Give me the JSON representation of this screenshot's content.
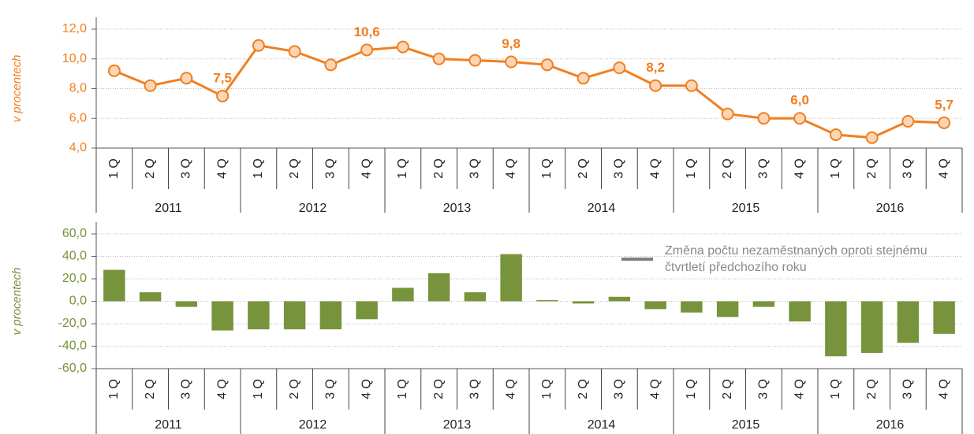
{
  "chart_data": [
    {
      "type": "line",
      "y_label": "v procentech",
      "color": "#f07f1f",
      "categories": [
        "1 Q",
        "2 Q",
        "3 Q",
        "4 Q",
        "1 Q",
        "2 Q",
        "3 Q",
        "4 Q",
        "1 Q",
        "2 Q",
        "3 Q",
        "4 Q",
        "1 Q",
        "2 Q",
        "3 Q",
        "4 Q",
        "1 Q",
        "2 Q",
        "3 Q",
        "4 Q",
        "1 Q",
        "2 Q",
        "3 Q",
        "4 Q"
      ],
      "groups": [
        "2011",
        "2012",
        "2013",
        "2014",
        "2015",
        "2016"
      ],
      "values": [
        9.2,
        8.2,
        8.7,
        7.5,
        10.9,
        10.5,
        9.6,
        10.6,
        10.8,
        10.0,
        9.9,
        9.8,
        9.6,
        8.7,
        9.4,
        8.2,
        8.2,
        6.3,
        6.0,
        6.0,
        4.9,
        4.7,
        5.8,
        5.7
      ],
      "value_labels": [
        null,
        null,
        null,
        "7,5",
        null,
        null,
        null,
        "10,6",
        null,
        null,
        null,
        "9,8",
        null,
        null,
        null,
        "8,2",
        null,
        null,
        null,
        "6,0",
        null,
        null,
        null,
        "5,7"
      ],
      "ylim": [
        4,
        12
      ],
      "yticks": [
        {
          "value": 4,
          "label": "4,0"
        },
        {
          "value": 6,
          "label": "6,0"
        },
        {
          "value": 8,
          "label": "8,0"
        },
        {
          "value": 10,
          "label": "10,0"
        },
        {
          "value": 12,
          "label": "12,0"
        }
      ],
      "grid": true
    },
    {
      "type": "bar",
      "y_label": "v procentech",
      "categories": [
        "1 Q",
        "2 Q",
        "3 Q",
        "4 Q",
        "1 Q",
        "2 Q",
        "3 Q",
        "4 Q",
        "1 Q",
        "2 Q",
        "3 Q",
        "4 Q",
        "1 Q",
        "2 Q",
        "3 Q",
        "4 Q",
        "1 Q",
        "2 Q",
        "3 Q",
        "4 Q",
        "1 Q",
        "2 Q",
        "3 Q",
        "4 Q"
      ],
      "groups": [
        "2011",
        "2012",
        "2013",
        "2014",
        "2015",
        "2016"
      ],
      "series": [
        {
          "name": "Změna počtu nezaměstnaných oproti stejnému čtvrtletí předchozího roku",
          "color": "#77933c",
          "values": [
            28,
            8,
            -5,
            -26,
            -25,
            -25,
            -25,
            -16,
            12,
            25,
            8,
            42,
            1,
            -2,
            4,
            -7,
            -10,
            -14,
            -5,
            -18,
            -49,
            -46,
            -37,
            -29
          ]
        }
      ],
      "ylim": [
        -60,
        60
      ],
      "yticks": [
        {
          "value": -60,
          "label": "-60,0"
        },
        {
          "value": -40,
          "label": "-40,0"
        },
        {
          "value": -20,
          "label": "-20,0"
        },
        {
          "value": 0,
          "label": "0,0"
        },
        {
          "value": 20,
          "label": "20,0"
        },
        {
          "value": 40,
          "label": "40,0"
        },
        {
          "value": 60,
          "label": "60,0"
        }
      ],
      "grid": true,
      "legend": "top-right"
    }
  ]
}
